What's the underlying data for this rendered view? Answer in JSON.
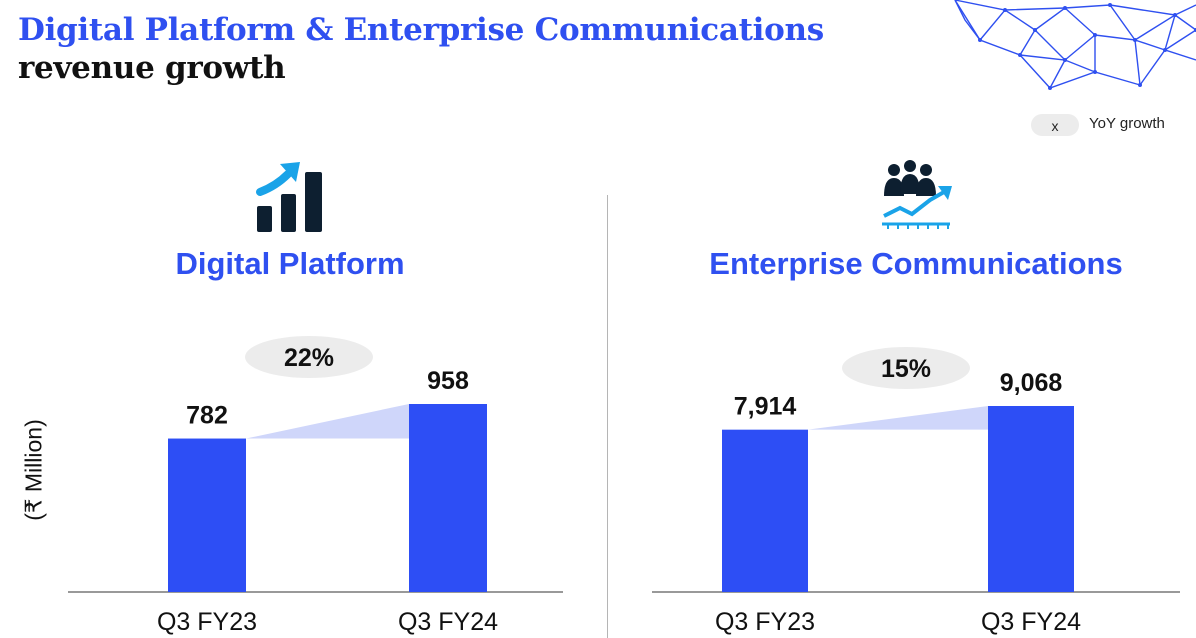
{
  "title": {
    "line1": "Digital Platform & Enterprise Communications",
    "line2": "revenue growth"
  },
  "legend": {
    "marker": "x",
    "label": "YoY growth"
  },
  "y_axis_label": "(₹ Million)",
  "colors": {
    "accent": "#2f50f0",
    "bar": "#2d4ef5",
    "growth_band": "#cfd6fa",
    "growth_pill": "#ececec",
    "icon_dark": "#0d1f30",
    "icon_blue": "#1aa3e8"
  },
  "icons": [
    "bar-chart-growth-icon",
    "team-growth-icon",
    "network-mesh-decoration"
  ],
  "chart_data": [
    {
      "type": "bar",
      "title": "Digital Platform",
      "categories": [
        "Q3 FY23",
        "Q3 FY24"
      ],
      "values": [
        782,
        958
      ],
      "value_labels": [
        "782",
        "958"
      ],
      "growth_label": "22%",
      "ylabel": "(₹ Million)"
    },
    {
      "type": "bar",
      "title": "Enterprise Communications",
      "categories": [
        "Q3 FY23",
        "Q3 FY24"
      ],
      "values": [
        7914,
        9068
      ],
      "value_labels": [
        "7,914",
        "9,068"
      ],
      "growth_label": "15%",
      "ylabel": "(₹ Million)"
    }
  ]
}
